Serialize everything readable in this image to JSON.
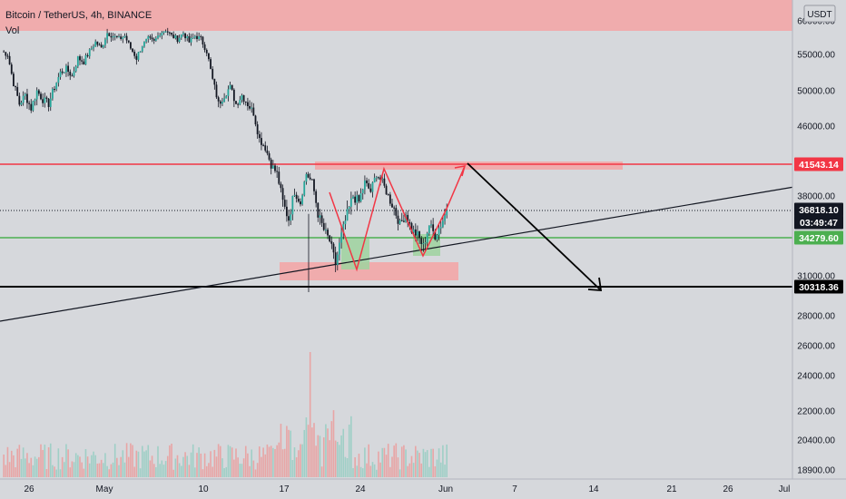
{
  "header": {
    "title": "Bitcoin / TetherUS, 4h, BINANCE",
    "indicator": "Vol",
    "currency": "USDT"
  },
  "chart_data": {
    "type": "candlestick",
    "y_ticks": [
      "60000.00",
      "55000.00",
      "50000.00",
      "46000.00",
      "38000.00",
      "31000.00",
      "28000.00",
      "26000.00",
      "24000.00",
      "22000.00",
      "20400.00",
      "18900.00"
    ],
    "x_ticks": [
      "26",
      "May",
      "10",
      "17",
      "24",
      "Jun",
      "7",
      "14",
      "21",
      "26",
      "Jul"
    ],
    "price_tags": [
      {
        "label": "41543.14",
        "value": 41543.14,
        "color": "#f23645"
      },
      {
        "label": "36818.10",
        "value": 36818.1,
        "color": "#131722"
      },
      {
        "label": "03:49:47",
        "value": null,
        "color": "#131722"
      },
      {
        "label": "34279.60",
        "value": 34279.6,
        "color": "#4caf50"
      },
      {
        "label": "30318.36",
        "value": 30318.36,
        "color": "#000000"
      }
    ],
    "horizontal_lines": [
      {
        "value": 41543.14,
        "color": "#f23645"
      },
      {
        "value": 34279.6,
        "color": "#4caf50"
      },
      {
        "value": 30318.36,
        "color": "#000000"
      },
      {
        "value": 36818.1,
        "color": "#131722",
        "style": "dotted"
      }
    ],
    "price_path": [
      [
        0,
        55500
      ],
      [
        3,
        55000
      ],
      [
        6,
        51000
      ],
      [
        9,
        48500
      ],
      [
        12,
        49500
      ],
      [
        15,
        48000
      ],
      [
        18,
        50000
      ],
      [
        21,
        49000
      ],
      [
        24,
        48500
      ],
      [
        27,
        50500
      ],
      [
        30,
        52500
      ],
      [
        33,
        53000
      ],
      [
        36,
        52000
      ],
      [
        39,
        54500
      ],
      [
        42,
        54000
      ],
      [
        45,
        55500
      ],
      [
        48,
        57000
      ],
      [
        51,
        56000
      ],
      [
        54,
        58500
      ],
      [
        57,
        58000
      ],
      [
        60,
        57500
      ],
      [
        63,
        58000
      ],
      [
        66,
        56000
      ],
      [
        69,
        54500
      ],
      [
        72,
        56500
      ],
      [
        75,
        57500
      ],
      [
        78,
        57000
      ],
      [
        81,
        58500
      ],
      [
        84,
        59000
      ],
      [
        87,
        58000
      ],
      [
        90,
        57500
      ],
      [
        93,
        58500
      ],
      [
        96,
        57000
      ],
      [
        99,
        58000
      ],
      [
        102,
        57500
      ],
      [
        105,
        55500
      ],
      [
        108,
        51500
      ],
      [
        111,
        48500
      ],
      [
        114,
        49500
      ],
      [
        117,
        50500
      ],
      [
        120,
        48500
      ],
      [
        123,
        49500
      ],
      [
        126,
        48500
      ],
      [
        129,
        47500
      ],
      [
        132,
        44500
      ],
      [
        135,
        43500
      ],
      [
        138,
        41500
      ],
      [
        141,
        40500
      ],
      [
        144,
        37500
      ],
      [
        147,
        36000
      ],
      [
        150,
        38500
      ],
      [
        153,
        37500
      ],
      [
        156,
        40500
      ],
      [
        159,
        39500
      ],
      [
        162,
        36500
      ],
      [
        165,
        35000
      ],
      [
        168,
        34000
      ],
      [
        171,
        32000
      ],
      [
        174,
        34500
      ],
      [
        177,
        36500
      ],
      [
        180,
        38000
      ],
      [
        183,
        37500
      ],
      [
        186,
        39500
      ],
      [
        189,
        38500
      ],
      [
        192,
        40500
      ],
      [
        195,
        39500
      ],
      [
        198,
        38000
      ],
      [
        201,
        37000
      ],
      [
        204,
        35500
      ],
      [
        207,
        36500
      ],
      [
        210,
        35000
      ],
      [
        213,
        34500
      ],
      [
        216,
        33500
      ],
      [
        219,
        35500
      ],
      [
        222,
        34500
      ],
      [
        225,
        35500
      ],
      [
        228,
        36800
      ]
    ],
    "last_price": 36818.1,
    "annotations": {
      "boxes": [
        {
          "x0": 0,
          "x1": 932,
          "y0": 0,
          "y1": 34,
          "color": "#f5a5a5"
        },
        {
          "x0": 347,
          "x1": 686,
          "y0": 178,
          "y1": 187,
          "color": "#f5a5a5"
        },
        {
          "x0": 308,
          "x1": 505,
          "y0": 289,
          "y1": 309,
          "color": "#f5a5a5"
        },
        {
          "x0": 376,
          "x1": 407,
          "y0": 263,
          "y1": 297,
          "color": "#9fd49f"
        },
        {
          "x0": 455,
          "x1": 485,
          "y0": 258,
          "y1": 282,
          "color": "#9fd49f"
        }
      ],
      "red_path": [
        [
          363,
          212
        ],
        [
          393,
          297
        ],
        [
          423,
          186
        ],
        [
          466,
          282
        ],
        [
          492,
          230
        ],
        [
          512,
          183
        ]
      ],
      "black_arrow": [
        [
          515,
          180
        ],
        [
          662,
          320
        ]
      ],
      "trend_line": [
        [
          0,
          354
        ],
        [
          875,
          206
        ]
      ]
    }
  }
}
